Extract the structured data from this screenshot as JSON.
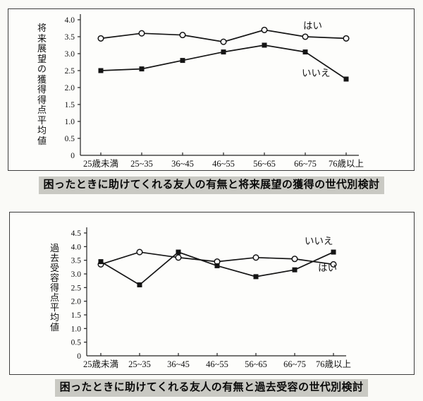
{
  "chart_data": [
    {
      "type": "line",
      "caption": "困ったときに助けてくれる友人の有無と将来展望の獲得の世代別検討",
      "ylabel": "将来展望の獲得得点平均値",
      "xlabel": "",
      "categories": [
        "25歳未満",
        "25~35",
        "36~45",
        "46~55",
        "56~65",
        "66~75",
        "76歳以上"
      ],
      "ylim": [
        0,
        4.0
      ],
      "ytick_step": 0.5,
      "grid": false,
      "legend_position": "inline-right",
      "series": [
        {
          "name": "はい",
          "marker": "circle",
          "values": [
            3.45,
            3.6,
            3.55,
            3.35,
            3.7,
            3.5,
            3.45
          ]
        },
        {
          "name": "いいえ",
          "marker": "square",
          "values": [
            2.5,
            2.55,
            2.8,
            3.05,
            3.25,
            3.05,
            2.25
          ]
        }
      ]
    },
    {
      "type": "line",
      "caption": "困ったときに助けてくれる友人の有無と過去受容の世代別検討",
      "ylabel": "過去受容得点平均値",
      "xlabel": "",
      "categories": [
        "25歳未満",
        "25~35",
        "36~45",
        "46~55",
        "56~65",
        "66~75",
        "76歳以上"
      ],
      "ylim": [
        0,
        4.5
      ],
      "ytick_step": 0.5,
      "grid": false,
      "legend_position": "inline-right",
      "series": [
        {
          "name": "はい",
          "marker": "circle",
          "values": [
            3.35,
            3.8,
            3.6,
            3.45,
            3.6,
            3.55,
            3.35
          ]
        },
        {
          "name": "いいえ",
          "marker": "square",
          "values": [
            3.45,
            2.6,
            3.8,
            3.3,
            2.9,
            3.15,
            3.8
          ]
        }
      ]
    }
  ],
  "colors": {
    "line": "#151515",
    "marker_fill": "#151515",
    "circle_fill": "#ffffff",
    "caption_highlight": "#c9c9c3",
    "box_border": "#3d3d3d",
    "background": "#fafaf7"
  }
}
